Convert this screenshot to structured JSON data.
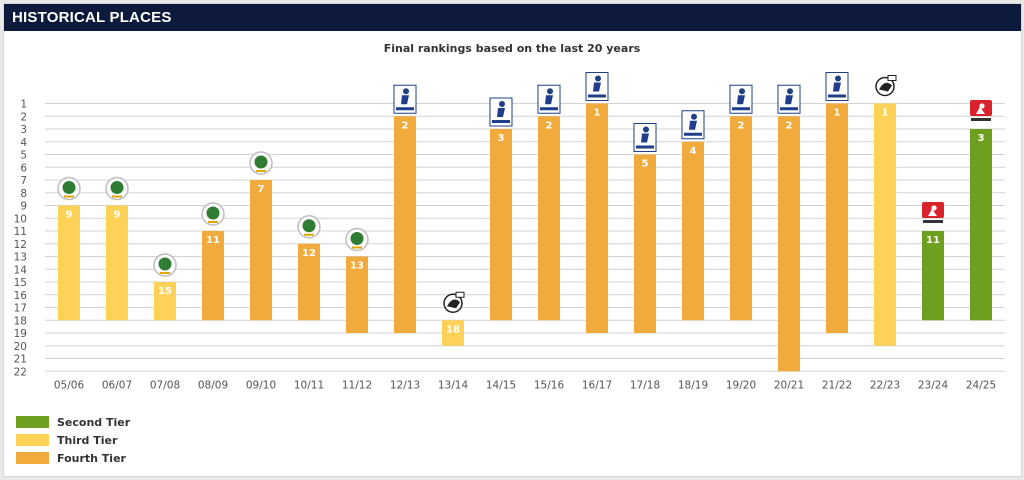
{
  "header": {
    "title": "HISTORICAL PLACES"
  },
  "chart_data": {
    "type": "bar",
    "title": "Final rankings based on the last 20 years",
    "xlabel": "",
    "ylabel": "",
    "ylim": [
      1,
      22
    ],
    "y_inverted": true,
    "grid": true,
    "categories": [
      "05/06",
      "06/07",
      "07/08",
      "08/09",
      "09/10",
      "10/11",
      "11/12",
      "12/13",
      "13/14",
      "14/15",
      "15/16",
      "16/17",
      "17/18",
      "18/19",
      "19/20",
      "20/21",
      "21/22",
      "22/23",
      "23/24",
      "24/25"
    ],
    "values": [
      9,
      9,
      15,
      11,
      7,
      12,
      13,
      2,
      18,
      3,
      2,
      1,
      5,
      4,
      2,
      2,
      1,
      1,
      11,
      3
    ],
    "league_size": [
      18,
      18,
      18,
      18,
      18,
      18,
      19,
      19,
      20,
      18,
      18,
      19,
      19,
      18,
      18,
      22,
      19,
      20,
      18,
      18
    ],
    "tier": [
      "third",
      "third",
      "third",
      "fourth",
      "fourth",
      "fourth",
      "fourth",
      "fourth",
      "third",
      "fourth",
      "fourth",
      "fourth",
      "fourth",
      "fourth",
      "fourth",
      "fourth",
      "fourth",
      "third",
      "second",
      "second"
    ],
    "league_icon": [
      "dfb-regionalliga-icon",
      "dfb-regionalliga-icon",
      "dfb-regionalliga-icon",
      "dfb-regionalliga-icon",
      "dfb-regionalliga-icon",
      "dfb-regionalliga-icon",
      "dfb-regionalliga-icon",
      "regionalliga-suedwest-icon",
      "3-liga-icon",
      "regionalliga-suedwest-icon",
      "regionalliga-suedwest-icon",
      "regionalliga-suedwest-icon",
      "regionalliga-suedwest-icon",
      "regionalliga-suedwest-icon",
      "regionalliga-suedwest-icon",
      "regionalliga-suedwest-icon",
      "regionalliga-suedwest-icon",
      "3-liga-icon",
      "2-bundesliga-icon",
      "2-bundesliga-icon"
    ],
    "legend": [
      {
        "key": "second",
        "label": "Second Tier",
        "color": "#6e9f1f"
      },
      {
        "key": "third",
        "label": "Third Tier",
        "color": "#fdd257"
      },
      {
        "key": "fourth",
        "label": "Fourth Tier",
        "color": "#f0ab3c"
      }
    ]
  }
}
